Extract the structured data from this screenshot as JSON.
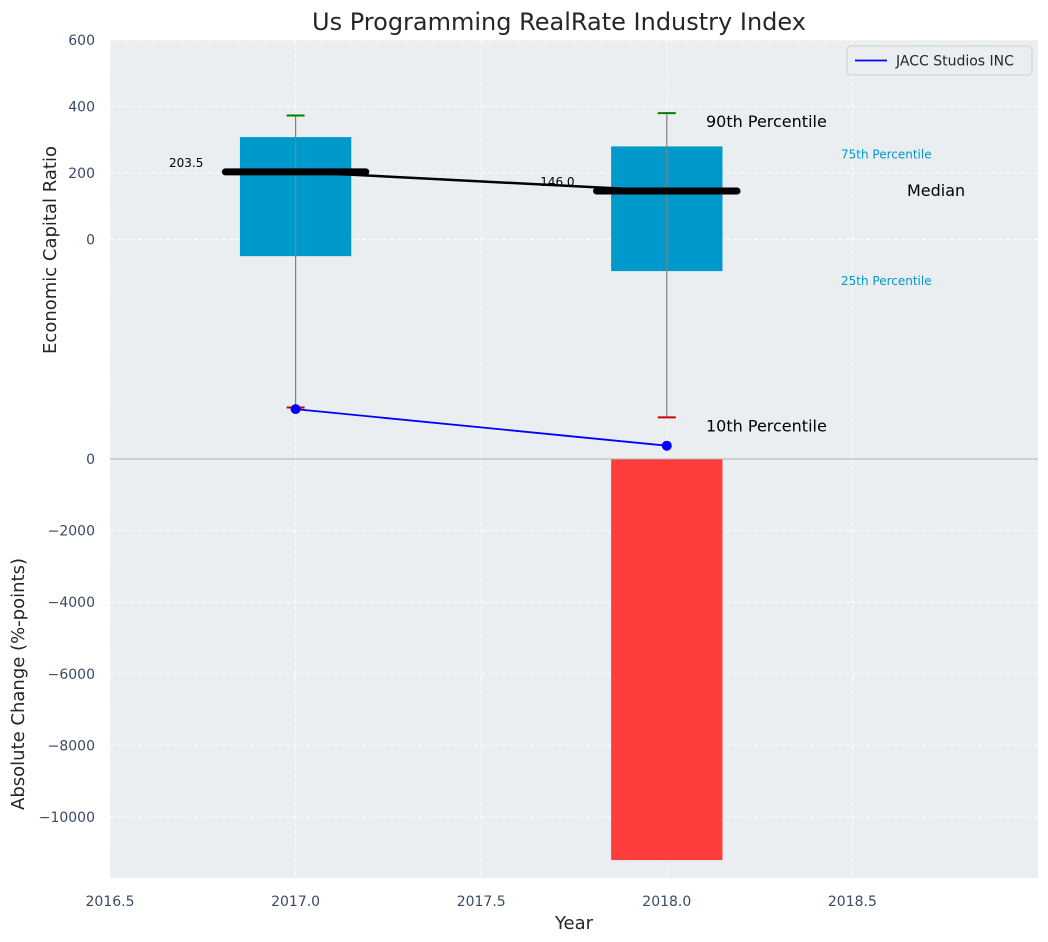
{
  "chart_data": [
    {
      "type": "box",
      "panel": "top",
      "title": "Us Programming RealRate Industry Index",
      "ylabel": "Economic Capital Ratio",
      "xlim": [
        2016.5,
        2019.0
      ],
      "ylim": [
        -660,
        600
      ],
      "y_ticks": [
        0,
        200,
        400,
        600
      ],
      "y_tick_labels": [
        "0",
        "200",
        "400",
        "600"
      ],
      "grid": true,
      "legend_position": "top-right",
      "boxes": [
        {
          "x": 2017,
          "p10": -505,
          "p25": -50,
          "median": 203.5,
          "p75": 308,
          "p90": 373,
          "median_label": "203.5"
        },
        {
          "x": 2018,
          "p10": -535,
          "p25": -95,
          "median": 146.0,
          "p75": 280,
          "p90": 380,
          "median_label": "146.0"
        }
      ],
      "median_line": {
        "x": [
          2017,
          2018
        ],
        "y": [
          203.5,
          146.0
        ]
      },
      "series": [
        {
          "name": "JACC Studios INC",
          "color": "#0000ff",
          "x": [
            2017,
            2018
          ],
          "y": [
            -510,
            -620
          ]
        }
      ],
      "percentile_labels": {
        "p90": "90th Percentile",
        "p75": "75th Percentile",
        "median": "Median",
        "p25": "25th Percentile",
        "p10": "10th Percentile"
      },
      "colors": {
        "box": "#0099cc",
        "median": "#000000",
        "p90_cap": "#008000",
        "p10_cap": "#cc0000",
        "whisker": "#808080"
      }
    },
    {
      "type": "bar",
      "panel": "bottom",
      "xlabel": "Year",
      "ylabel": "Absolute Change (%-points)",
      "xlim": [
        2016.5,
        2019.0
      ],
      "ylim": [
        -11700,
        0
      ],
      "x_ticks": [
        2016.5,
        2017.0,
        2017.5,
        2018.0,
        2018.5
      ],
      "x_tick_labels": [
        "2016.5",
        "2017.0",
        "2017.5",
        "2018.0",
        "2018.5"
      ],
      "y_ticks": [
        0,
        -2000,
        -4000,
        -6000,
        -8000,
        -10000
      ],
      "y_tick_labels": [
        "0",
        "−2000",
        "−4000",
        "−6000",
        "−8000",
        "−10000"
      ],
      "grid": true,
      "categories": [
        2018.0
      ],
      "values": [
        -11200
      ],
      "bar_color": "#ff3333"
    }
  ]
}
